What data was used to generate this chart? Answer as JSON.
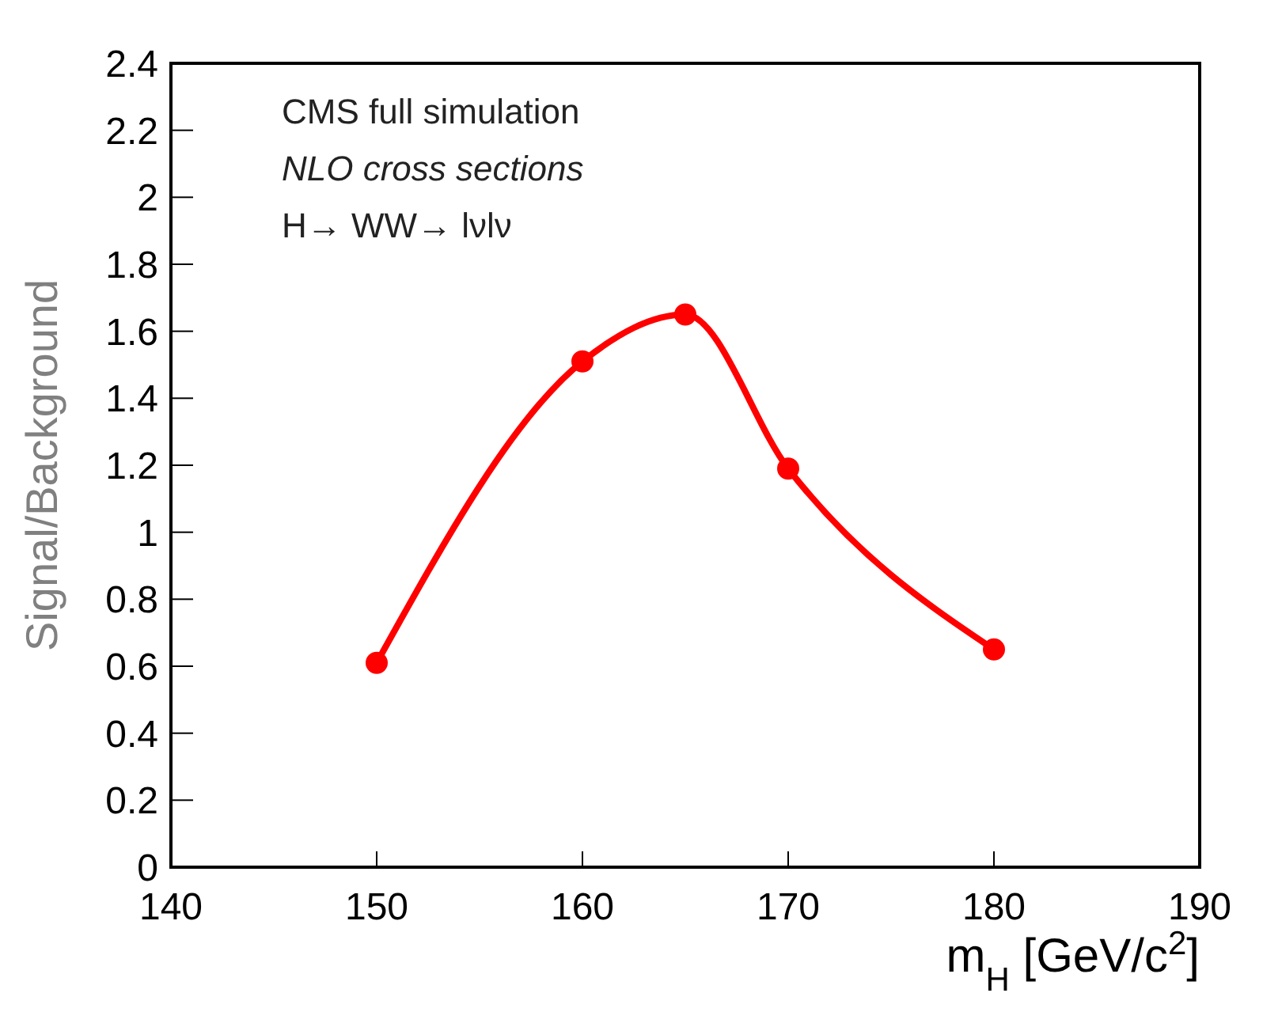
{
  "chart_data": {
    "type": "line",
    "xlabel": "m$_{H}$ [GeV/c$^{2}$]",
    "ylabel": "Signal/Background",
    "annotations": [
      "CMS full simulation",
      "NLO cross sections",
      "H→ WW→ lνlν"
    ],
    "x": [
      150,
      160,
      165,
      170,
      180
    ],
    "series": [
      {
        "color": "#ff0000",
        "values": [
          0.61,
          1.51,
          1.65,
          1.19,
          0.65
        ]
      }
    ],
    "xlim": [
      140,
      190
    ],
    "xticks": [
      140,
      150,
      160,
      170,
      180,
      190
    ],
    "ylim": [
      0,
      2.4
    ],
    "yticks": [
      0,
      0.2,
      0.4,
      0.6,
      0.8,
      1,
      1.2,
      1.4,
      1.6,
      1.8,
      2,
      2.2,
      2.4
    ],
    "grid": false,
    "legend": false,
    "marker": "circle",
    "line_style": "solid"
  }
}
